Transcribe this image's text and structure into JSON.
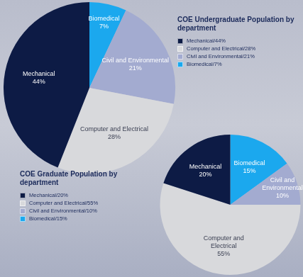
{
  "chart_data": [
    {
      "type": "pie",
      "title": "COE Undergraduate Population by department",
      "categories": [
        "Mechanical",
        "Computer and Electrical",
        "Civil and Environmental",
        "Biomedical"
      ],
      "values": [
        44,
        28,
        21,
        7
      ],
      "value_labels": [
        "44%",
        "28%",
        "21%",
        "7%"
      ],
      "legend_labels": [
        "Mechanical/44%",
        "Computer and Electrical/28%",
        "Civil and Environmental/21%",
        "Biomedical/7%"
      ],
      "colors": [
        "#0d1b45",
        "#d8d9dc",
        "#a3abd0",
        "#1ba8ee"
      ],
      "data_labels": true,
      "legend": "top-right"
    },
    {
      "type": "pie",
      "title": "COE Graduate Population by department",
      "categories": [
        "Mechanical",
        "Computer and Electrical",
        "Civil and Environmental",
        "Biomedical"
      ],
      "values": [
        20,
        55,
        10,
        15
      ],
      "value_labels": [
        "20%",
        "55%",
        "10%",
        "15%"
      ],
      "legend_labels": [
        "Mechanical/20%",
        "Computer and Electrical/55%",
        "Civil and Environmental/10%",
        "Biomedical/15%"
      ],
      "colors": [
        "#0d1b45",
        "#d8d9dc",
        "#a3abd0",
        "#1ba8ee"
      ],
      "data_labels": true,
      "legend": "bottom-left"
    }
  ]
}
